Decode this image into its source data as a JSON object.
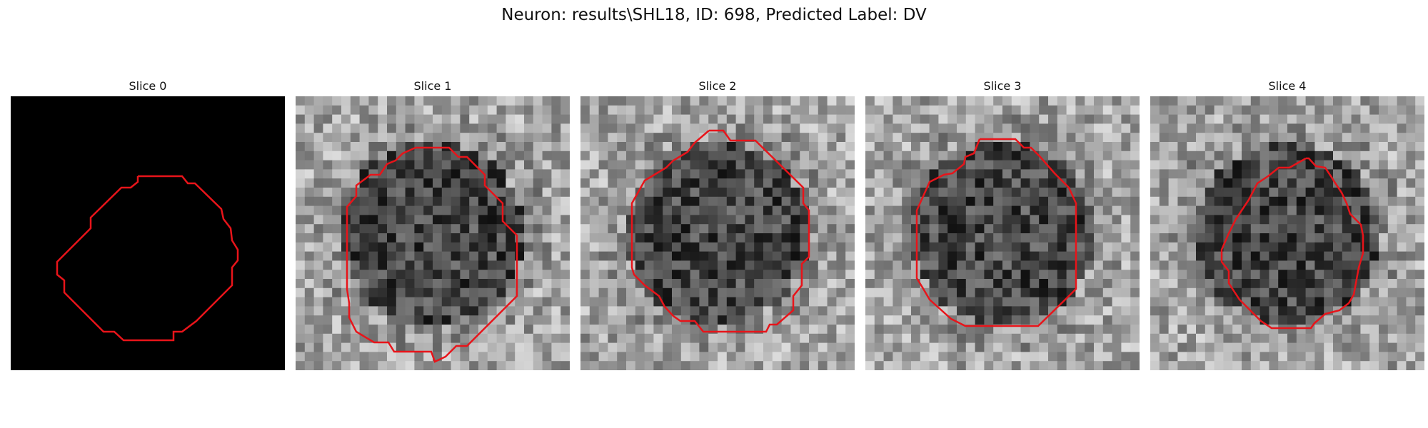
{
  "figure": {
    "title": "Neuron: results\\SHL18, ID: 698, Predicted Label: DV"
  },
  "panels": [
    {
      "title": "Slice 0",
      "kind": "mask",
      "seed": 11
    },
    {
      "title": "Slice 1",
      "kind": "noise",
      "seed": 23
    },
    {
      "title": "Slice 2",
      "kind": "noise",
      "seed": 37
    },
    {
      "title": "Slice 3",
      "kind": "noise",
      "seed": 41
    },
    {
      "title": "Slice 4",
      "kind": "noise",
      "seed": 53
    }
  ],
  "contour_color": "#e8141a",
  "background_color": "#000000"
}
